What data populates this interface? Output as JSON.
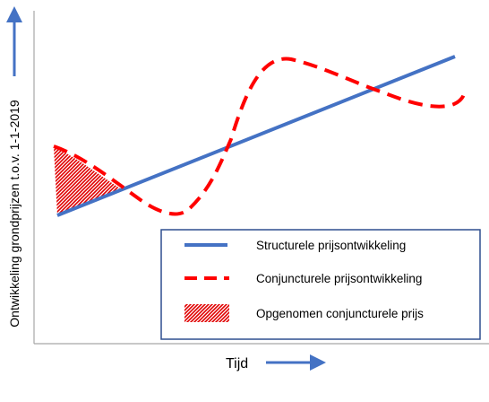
{
  "axes": {
    "y_label": "Ontwikkeling grondprijzen t.o.v. 1-1-2019",
    "x_label": "Tijd"
  },
  "legend": {
    "structural": "Structurele prijsontwikkeling",
    "cyclical": "Conjuncturele prijsontwikkeling",
    "included": "Opgenomen conjuncturele prijs"
  },
  "colors": {
    "structural": "#4472c4",
    "cyclical": "#ff0000",
    "axis": "#a6a6a6",
    "arrow": "#4472c4",
    "legend_border": "#2f4f8f"
  }
}
